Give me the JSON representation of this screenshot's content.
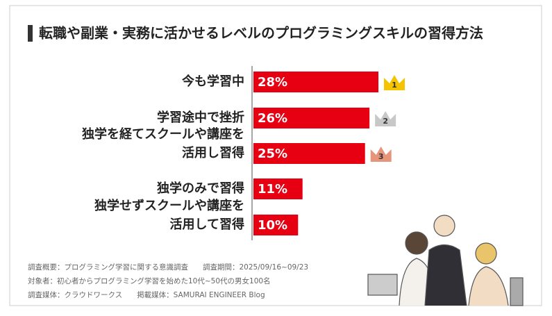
{
  "chart_data": {
    "type": "bar",
    "orientation": "horizontal",
    "title": "転職や副業・実務に活かせるレベルのプログラミングスキルの習得方法",
    "categories": [
      [
        "今も学習中"
      ],
      [
        "学習途中で挫折"
      ],
      [
        "独学を経てスクールや講座を",
        "活用し習得"
      ],
      [
        "独学のみで習得"
      ],
      [
        "独学せずスクールや講座を",
        "活用して習得"
      ]
    ],
    "values": [
      28,
      26,
      25,
      11,
      10
    ],
    "value_labels": [
      "28%",
      "26%",
      "25%",
      "11%",
      "10%"
    ],
    "color": "#e60012",
    "badges": [
      "1",
      "2",
      "3"
    ],
    "notes": [
      "調査概要：プログラミング学習に関する意識調査　　調査期間：2025/09/16~09/23",
      "対象者：初心者からプログラミング学習を始めた10代~50代の男女100名",
      "調査媒体：クラウドワークス　　掲載媒体：SAMURAI ENGINEER Blog"
    ]
  }
}
